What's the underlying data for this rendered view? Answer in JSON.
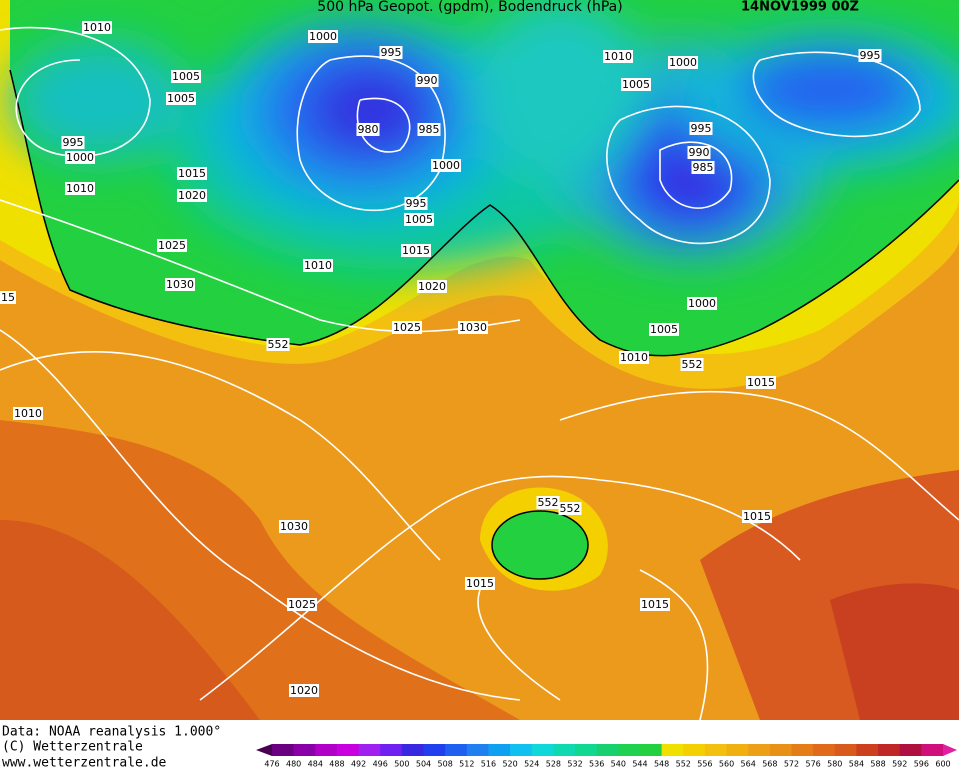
{
  "header": {
    "title": "500 hPa Geopot. (gpdm), Bodendruck (hPa)",
    "date": "14NOV1999 00Z"
  },
  "isobar_labels": [
    "1010",
    "1000",
    "995",
    "990",
    "1005",
    "1005",
    "995",
    "1000",
    "980",
    "985",
    "1000",
    "1015",
    "1010",
    "1020",
    "995",
    "1005",
    "1025",
    "1015",
    "1010",
    "1030",
    "1020",
    "15",
    "552",
    "1025",
    "1030",
    "1010",
    "1010",
    "1000",
    "1005",
    "995",
    "995",
    "990",
    "985",
    "1000",
    "1005",
    "1010",
    "552",
    "1015",
    "1015",
    "1030",
    "552",
    "552",
    "1015",
    "1015",
    "1025",
    "1020"
  ],
  "footer": {
    "data_source": "Data: NOAA reanalysis 1.000°",
    "copyright": "(C) Wetterzentrale",
    "url": "www.wetterzentrale.de"
  },
  "colorbar": {
    "labels": [
      476,
      480,
      484,
      488,
      492,
      496,
      500,
      504,
      508,
      512,
      516,
      520,
      524,
      528,
      532,
      536,
      540,
      544,
      548,
      552,
      556,
      560,
      564,
      568,
      572,
      576,
      580,
      584,
      588,
      592,
      596,
      600
    ]
  }
}
